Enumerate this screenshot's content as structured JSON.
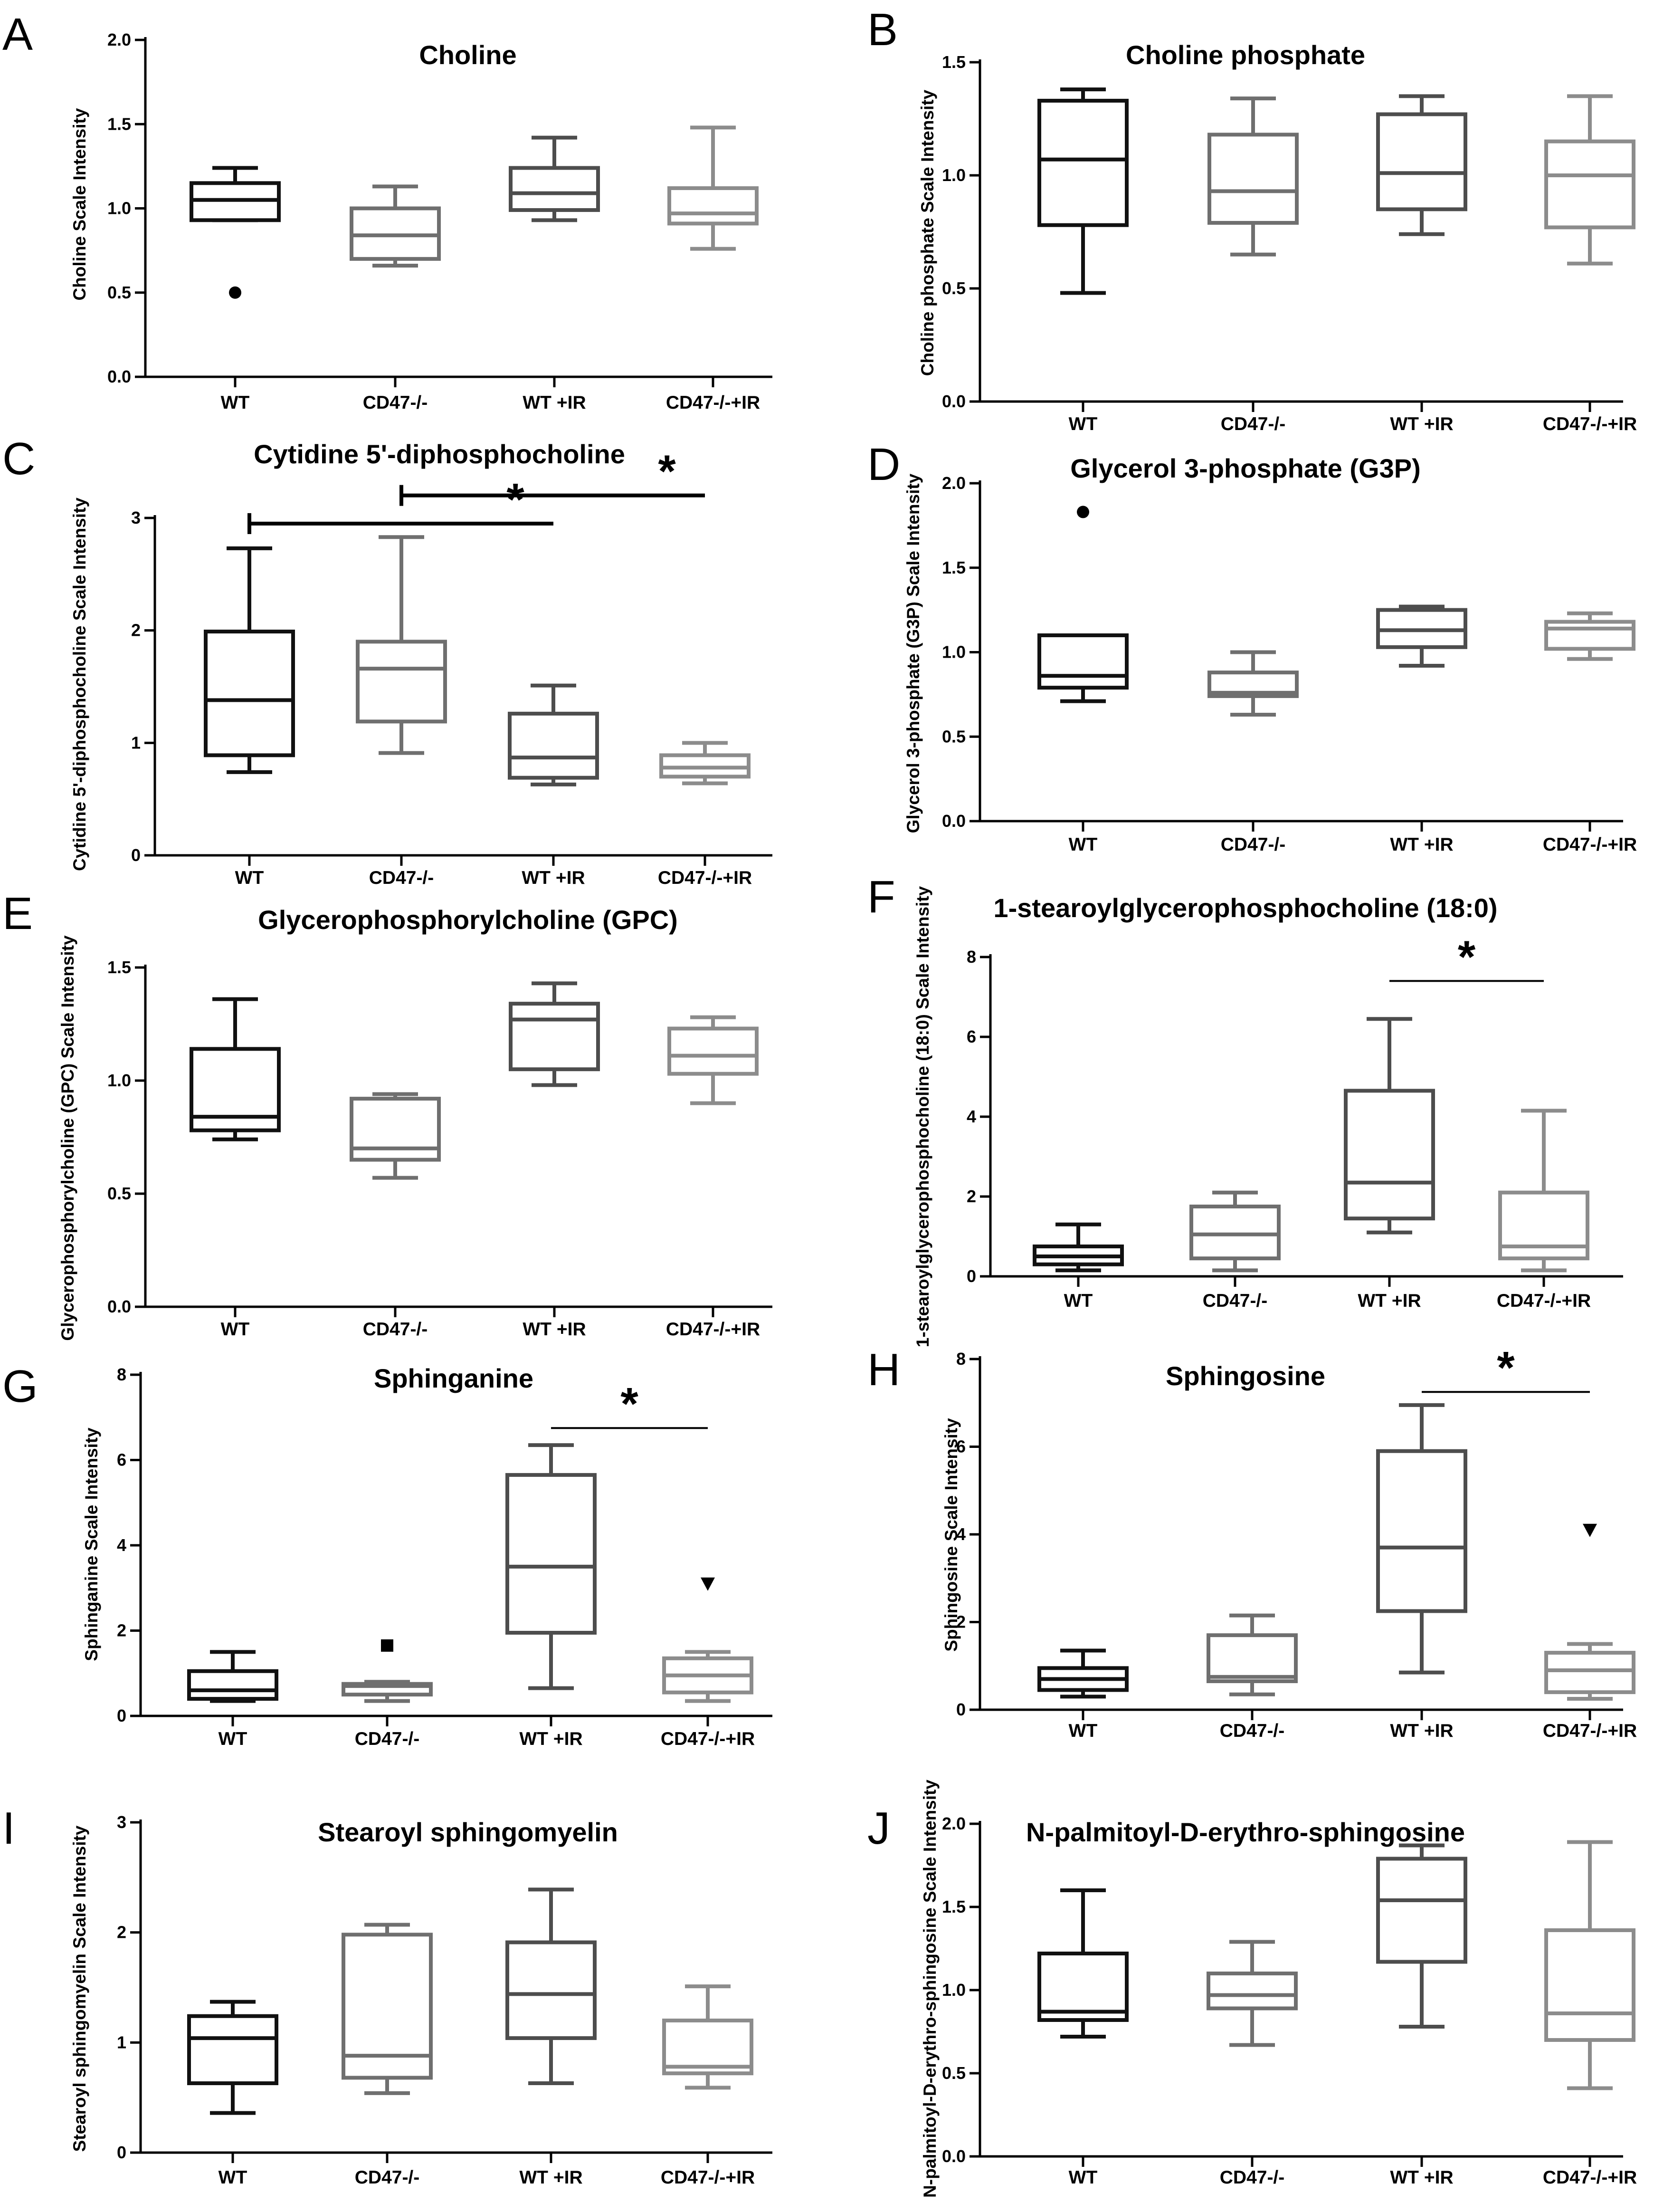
{
  "figure": {
    "colors": {
      "dark": "#111111",
      "mid": "#4d4d4d",
      "gray": "#6f6f6f",
      "light": "#8c8c8c",
      "axis": "#000000"
    },
    "groups": [
      "WT",
      "CD47-/-",
      "WT +IR",
      "CD47-/-+IR"
    ]
  },
  "chart_data": [
    {
      "type": "boxplot",
      "panel": "A",
      "title": "Choline",
      "ylabel": "Choline Scale Intensity",
      "ylim": [
        0,
        2
      ],
      "yticks": [
        "0.0",
        "0.5",
        "1.0",
        "1.5",
        "2.0"
      ],
      "categories": [
        "WT",
        "CD47-/-",
        "WT +IR",
        "CD47-/-+IR"
      ],
      "series": [
        {
          "name": "WT",
          "color": "dark",
          "min": 0.93,
          "q1": 0.93,
          "median": 1.05,
          "q3": 1.15,
          "max": 1.24,
          "outliers": [
            {
              "value": 0.5,
              "marker": "circle"
            }
          ]
        },
        {
          "name": "CD47-/-",
          "color": "gray",
          "min": 0.66,
          "q1": 0.7,
          "median": 0.84,
          "q3": 1.0,
          "max": 1.13,
          "outliers": []
        },
        {
          "name": "WT +IR",
          "color": "mid",
          "min": 0.93,
          "q1": 0.99,
          "median": 1.09,
          "q3": 1.24,
          "max": 1.42,
          "outliers": []
        },
        {
          "name": "CD47-/-+IR",
          "color": "light",
          "min": 0.76,
          "q1": 0.91,
          "median": 0.97,
          "q3": 1.12,
          "max": 1.48,
          "outliers": []
        }
      ],
      "significance": []
    },
    {
      "type": "boxplot",
      "panel": "B",
      "title": "Choline phosphate",
      "ylabel": "Choline phosphate Scale Intensity",
      "ylim": [
        0,
        1.5
      ],
      "yticks": [
        "0.0",
        "0.5",
        "1.0",
        "1.5"
      ],
      "categories": [
        "WT",
        "CD47-/-",
        "WT +IR",
        "CD47-/-+IR"
      ],
      "series": [
        {
          "name": "WT",
          "color": "dark",
          "min": 0.48,
          "q1": 0.78,
          "median": 1.07,
          "q3": 1.33,
          "max": 1.38,
          "outliers": []
        },
        {
          "name": "CD47-/-",
          "color": "gray",
          "min": 0.65,
          "q1": 0.79,
          "median": 0.93,
          "q3": 1.18,
          "max": 1.34,
          "outliers": []
        },
        {
          "name": "WT +IR",
          "color": "mid",
          "min": 0.74,
          "q1": 0.85,
          "median": 1.01,
          "q3": 1.27,
          "max": 1.35,
          "outliers": []
        },
        {
          "name": "CD47-/-+IR",
          "color": "light",
          "min": 0.61,
          "q1": 0.77,
          "median": 1.0,
          "q3": 1.15,
          "max": 1.35,
          "outliers": []
        }
      ],
      "significance": []
    },
    {
      "type": "boxplot",
      "panel": "C",
      "title": "Cytidine 5'-diphosphocholine",
      "ylabel": "Cytidine 5'-diphosphocholine Scale Intensity",
      "ylim": [
        0,
        3
      ],
      "yticks": [
        "0",
        "1",
        "2",
        "3"
      ],
      "categories": [
        "WT",
        "CD47-/-",
        "WT +IR",
        "CD47-/-+IR"
      ],
      "series": [
        {
          "name": "WT",
          "color": "dark",
          "min": 0.74,
          "q1": 0.89,
          "median": 1.38,
          "q3": 1.99,
          "max": 2.73,
          "outliers": []
        },
        {
          "name": "CD47-/-",
          "color": "gray",
          "min": 0.91,
          "q1": 1.19,
          "median": 1.66,
          "q3": 1.9,
          "max": 2.83,
          "outliers": []
        },
        {
          "name": "WT +IR",
          "color": "mid",
          "min": 0.63,
          "q1": 0.69,
          "median": 0.87,
          "q3": 1.26,
          "max": 1.51,
          "outliers": []
        },
        {
          "name": "CD47-/-+IR",
          "color": "light",
          "min": 0.64,
          "q1": 0.7,
          "median": 0.78,
          "q3": 0.89,
          "max": 1.0,
          "outliers": []
        }
      ],
      "significance": [
        {
          "from": 0,
          "to": 2,
          "y": 2.95,
          "label": "*"
        },
        {
          "from": 1,
          "to": 3,
          "y": 3.2,
          "label": "*"
        }
      ]
    },
    {
      "type": "boxplot",
      "panel": "D",
      "title": "Glycerol 3-phosphate (G3P)",
      "ylabel": "Glycerol 3-phosphate (G3P) Scale Intensity",
      "ylim": [
        0,
        2
      ],
      "yticks": [
        "0.0",
        "0.5",
        "1.0",
        "1.5",
        "2.0"
      ],
      "categories": [
        "WT",
        "CD47-/-",
        "WT +IR",
        "CD47-/-+IR"
      ],
      "series": [
        {
          "name": "WT",
          "color": "dark",
          "min": 0.71,
          "q1": 0.79,
          "median": 0.86,
          "q3": 1.1,
          "max": 1.1,
          "outliers": [
            {
              "value": 1.83,
              "marker": "circle"
            }
          ]
        },
        {
          "name": "CD47-/-",
          "color": "gray",
          "min": 0.63,
          "q1": 0.74,
          "median": 0.76,
          "q3": 0.88,
          "max": 1.0,
          "outliers": []
        },
        {
          "name": "WT +IR",
          "color": "mid",
          "min": 0.92,
          "q1": 1.03,
          "median": 1.13,
          "q3": 1.25,
          "max": 1.27,
          "outliers": []
        },
        {
          "name": "CD47-/-+IR",
          "color": "light",
          "min": 0.96,
          "q1": 1.02,
          "median": 1.14,
          "q3": 1.18,
          "max": 1.23,
          "outliers": []
        }
      ],
      "significance": []
    },
    {
      "type": "boxplot",
      "panel": "E",
      "title": "Glycerophosphorylcholine (GPC)",
      "ylabel": "Glycerophosphorylcholine (GPC) Scale Intensity",
      "ylim": [
        0,
        1.5
      ],
      "yticks": [
        "0.0",
        "0.5",
        "1.0",
        "1.5"
      ],
      "categories": [
        "WT",
        "CD47-/-",
        "WT +IR",
        "CD47-/-+IR"
      ],
      "series": [
        {
          "name": "WT",
          "color": "dark",
          "min": 0.74,
          "q1": 0.78,
          "median": 0.84,
          "q3": 1.14,
          "max": 1.36,
          "outliers": []
        },
        {
          "name": "CD47-/-",
          "color": "gray",
          "min": 0.57,
          "q1": 0.65,
          "median": 0.7,
          "q3": 0.92,
          "max": 0.94,
          "outliers": []
        },
        {
          "name": "WT +IR",
          "color": "mid",
          "min": 0.98,
          "q1": 1.05,
          "median": 1.27,
          "q3": 1.34,
          "max": 1.43,
          "outliers": []
        },
        {
          "name": "CD47-/-+IR",
          "color": "light",
          "min": 0.9,
          "q1": 1.03,
          "median": 1.11,
          "q3": 1.23,
          "max": 1.28,
          "outliers": []
        }
      ],
      "significance": []
    },
    {
      "type": "boxplot",
      "panel": "F",
      "title": "1-stearoylglycerophosphocholine (18:0)",
      "ylabel": "1-stearoylglycerophosphocholine (18:0) Scale Intensity",
      "ylim": [
        0,
        8
      ],
      "yticks": [
        "0",
        "2",
        "4",
        "6",
        "8"
      ],
      "categories": [
        "WT",
        "CD47-/-",
        "WT +IR",
        "CD47-/-+IR"
      ],
      "series": [
        {
          "name": "WT",
          "color": "dark",
          "min": 0.15,
          "q1": 0.3,
          "median": 0.5,
          "q3": 0.75,
          "max": 1.3,
          "outliers": []
        },
        {
          "name": "CD47-/-",
          "color": "gray",
          "min": 0.15,
          "q1": 0.45,
          "median": 1.05,
          "q3": 1.75,
          "max": 2.1,
          "outliers": []
        },
        {
          "name": "WT +IR",
          "color": "mid",
          "min": 1.1,
          "q1": 1.45,
          "median": 2.35,
          "q3": 4.65,
          "max": 6.45,
          "outliers": []
        },
        {
          "name": "CD47-/-+IR",
          "color": "light",
          "min": 0.15,
          "q1": 0.45,
          "median": 0.75,
          "q3": 2.1,
          "max": 4.15,
          "outliers": []
        }
      ],
      "significance": [
        {
          "from": 2,
          "to": 3,
          "y": 7.4,
          "label": "*"
        }
      ]
    },
    {
      "type": "boxplot",
      "panel": "G",
      "title": "Sphinganine",
      "ylabel": "Sphinganine Scale Intensity",
      "ylim": [
        0,
        8
      ],
      "yticks": [
        "0",
        "2",
        "4",
        "6",
        "8"
      ],
      "categories": [
        "WT",
        "CD47-/-",
        "WT +IR",
        "CD47-/-+IR"
      ],
      "series": [
        {
          "name": "WT",
          "color": "dark",
          "min": 0.35,
          "q1": 0.4,
          "median": 0.6,
          "q3": 1.05,
          "max": 1.5,
          "outliers": []
        },
        {
          "name": "CD47-/-",
          "color": "gray",
          "min": 0.35,
          "q1": 0.5,
          "median": 0.7,
          "q3": 0.75,
          "max": 0.8,
          "outliers": [
            {
              "value": 1.65,
              "marker": "square"
            }
          ]
        },
        {
          "name": "WT +IR",
          "color": "mid",
          "min": 0.65,
          "q1": 1.95,
          "median": 3.5,
          "q3": 5.65,
          "max": 6.35,
          "outliers": []
        },
        {
          "name": "CD47-/-+IR",
          "color": "light",
          "min": 0.35,
          "q1": 0.55,
          "median": 0.95,
          "q3": 1.35,
          "max": 1.5,
          "outliers": [
            {
              "value": 3.1,
              "marker": "triangle"
            }
          ]
        }
      ],
      "significance": [
        {
          "from": 2,
          "to": 3,
          "y": 6.75,
          "label": "*"
        }
      ]
    },
    {
      "type": "boxplot",
      "panel": "H",
      "title": "Sphingosine",
      "ylabel": "Sphingosine Scale Intensity",
      "ylim": [
        0,
        8
      ],
      "yticks": [
        "0",
        "2",
        "4",
        "6",
        "8"
      ],
      "categories": [
        "WT",
        "CD47-/-",
        "WT +IR",
        "CD47-/-+IR"
      ],
      "series": [
        {
          "name": "WT",
          "color": "dark",
          "min": 0.3,
          "q1": 0.45,
          "median": 0.7,
          "q3": 0.95,
          "max": 1.35,
          "outliers": []
        },
        {
          "name": "CD47-/-",
          "color": "gray",
          "min": 0.35,
          "q1": 0.65,
          "median": 0.75,
          "q3": 1.7,
          "max": 2.15,
          "outliers": []
        },
        {
          "name": "WT +IR",
          "color": "mid",
          "min": 0.85,
          "q1": 2.25,
          "median": 3.7,
          "q3": 5.9,
          "max": 6.95,
          "outliers": []
        },
        {
          "name": "CD47-/-+IR",
          "color": "light",
          "min": 0.25,
          "q1": 0.4,
          "median": 0.9,
          "q3": 1.3,
          "max": 1.5,
          "outliers": [
            {
              "value": 4.1,
              "marker": "triangle"
            }
          ]
        }
      ],
      "significance": [
        {
          "from": 2,
          "to": 3,
          "y": 7.25,
          "label": "*"
        }
      ]
    },
    {
      "type": "boxplot",
      "panel": "I",
      "title": "Stearoyl sphingomyelin",
      "ylabel": "Stearoyl sphingomyelin Scale Intensity",
      "ylim": [
        0,
        3
      ],
      "yticks": [
        "0",
        "1",
        "2",
        "3"
      ],
      "categories": [
        "WT",
        "CD47-/-",
        "WT +IR",
        "CD47-/-+IR"
      ],
      "series": [
        {
          "name": "WT",
          "color": "dark",
          "min": 0.36,
          "q1": 0.63,
          "median": 1.04,
          "q3": 1.24,
          "max": 1.37,
          "outliers": []
        },
        {
          "name": "CD47-/-",
          "color": "gray",
          "min": 0.54,
          "q1": 0.68,
          "median": 0.88,
          "q3": 1.98,
          "max": 2.07,
          "outliers": []
        },
        {
          "name": "WT +IR",
          "color": "mid",
          "min": 0.63,
          "q1": 1.04,
          "median": 1.44,
          "q3": 1.91,
          "max": 2.39,
          "outliers": []
        },
        {
          "name": "CD47-/-+IR",
          "color": "light",
          "min": 0.59,
          "q1": 0.72,
          "median": 0.78,
          "q3": 1.2,
          "max": 1.51,
          "outliers": []
        }
      ],
      "significance": []
    },
    {
      "type": "boxplot",
      "panel": "J",
      "title": "N-palmitoyl-D-erythro-sphingosine",
      "ylabel": "N-palmitoyl-D-erythro-sphingosine Scale Intensity",
      "ylim": [
        0,
        2
      ],
      "yticks": [
        "0.0",
        "0.5",
        "1.0",
        "1.5",
        "2.0"
      ],
      "categories": [
        "WT",
        "CD47-/-",
        "WT +IR",
        "CD47-/-+IR"
      ],
      "series": [
        {
          "name": "WT",
          "color": "dark",
          "min": 0.72,
          "q1": 0.82,
          "median": 0.87,
          "q3": 1.22,
          "max": 1.6,
          "outliers": []
        },
        {
          "name": "CD47-/-",
          "color": "gray",
          "min": 0.67,
          "q1": 0.89,
          "median": 0.97,
          "q3": 1.1,
          "max": 1.29,
          "outliers": []
        },
        {
          "name": "WT +IR",
          "color": "mid",
          "min": 0.78,
          "q1": 1.17,
          "median": 1.54,
          "q3": 1.79,
          "max": 1.87,
          "outliers": []
        },
        {
          "name": "CD47-/-+IR",
          "color": "light",
          "min": 0.41,
          "q1": 0.7,
          "median": 0.86,
          "q3": 1.36,
          "max": 1.89,
          "outliers": []
        }
      ],
      "significance": []
    }
  ]
}
